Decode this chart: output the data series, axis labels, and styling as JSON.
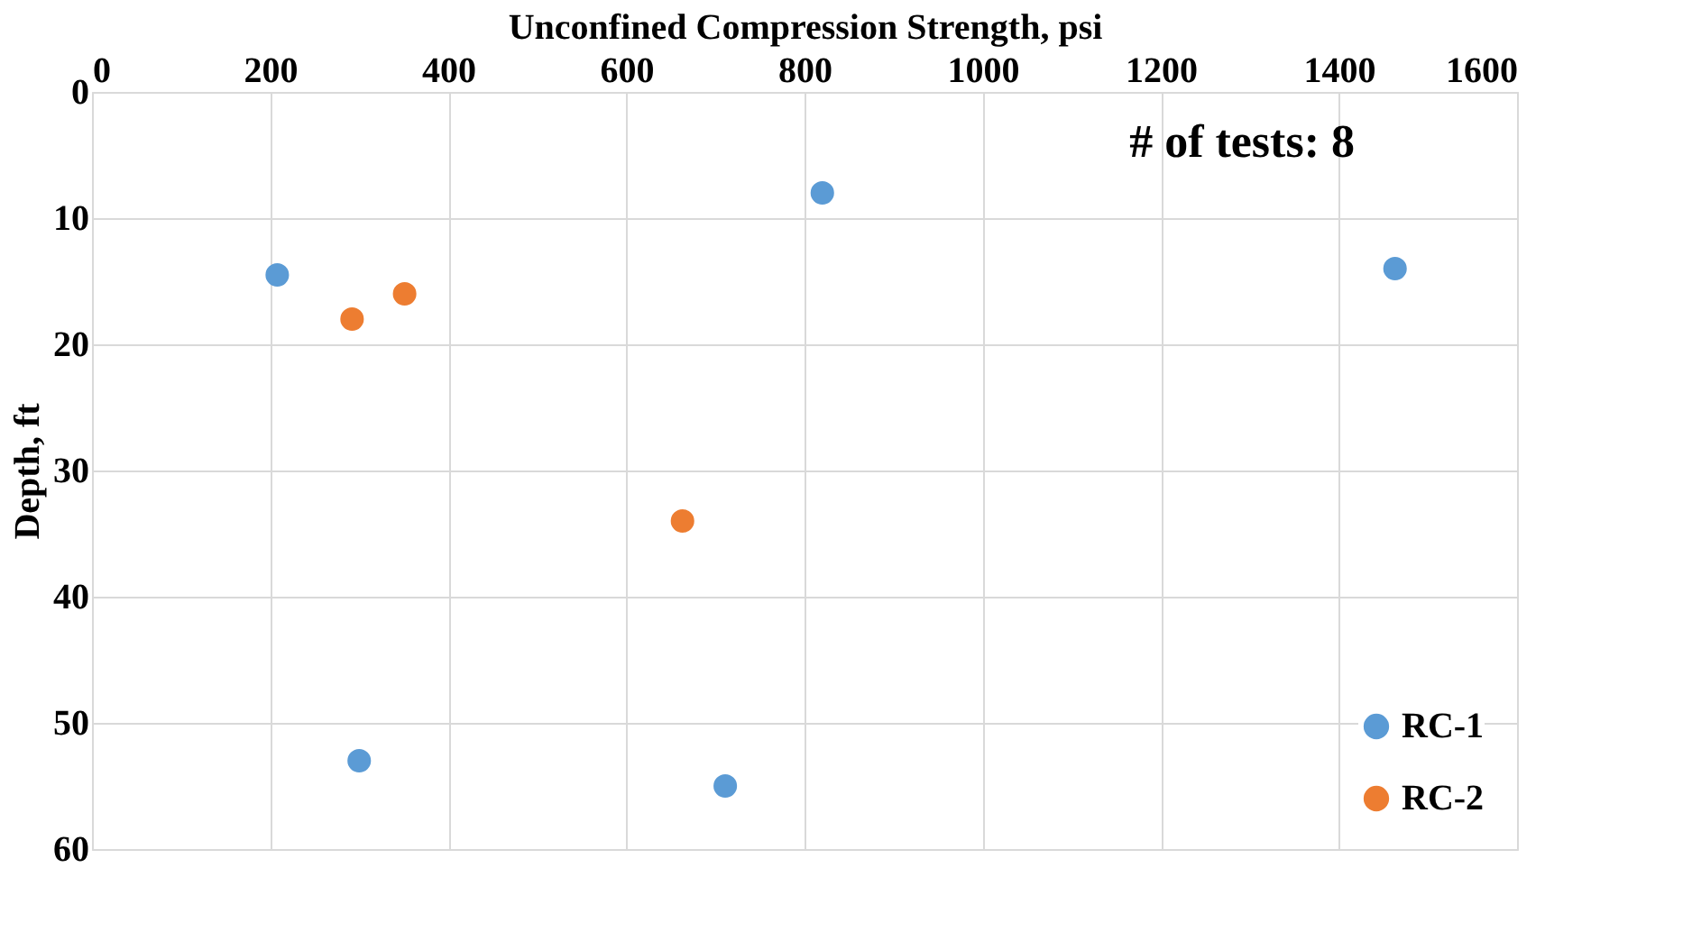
{
  "chart_data": {
    "type": "scatter",
    "xlabel": "Unconfined Compression Strength, psi",
    "ylabel": "Depth, ft",
    "annotations": [
      "# of tests: 8"
    ],
    "xlim": [
      0,
      1600
    ],
    "xticks": [
      0,
      200,
      400,
      600,
      800,
      1000,
      1200,
      1400,
      1600
    ],
    "ylim": [
      60,
      0
    ],
    "yticks": [
      0,
      10,
      20,
      30,
      40,
      50,
      60
    ],
    "grid": true,
    "legend": "bottom right",
    "marker": "circle",
    "series": [
      {
        "name": "RC-1",
        "color": "#5b9bd5",
        "x": [
          208,
          820,
          1463,
          300,
          711
        ],
        "values": [
          14.5,
          8,
          14,
          53,
          55
        ]
      },
      {
        "name": "RC-2",
        "color": "#ed7d31",
        "x": [
          292,
          351,
          663
        ],
        "values": [
          18,
          16,
          34
        ]
      }
    ]
  }
}
